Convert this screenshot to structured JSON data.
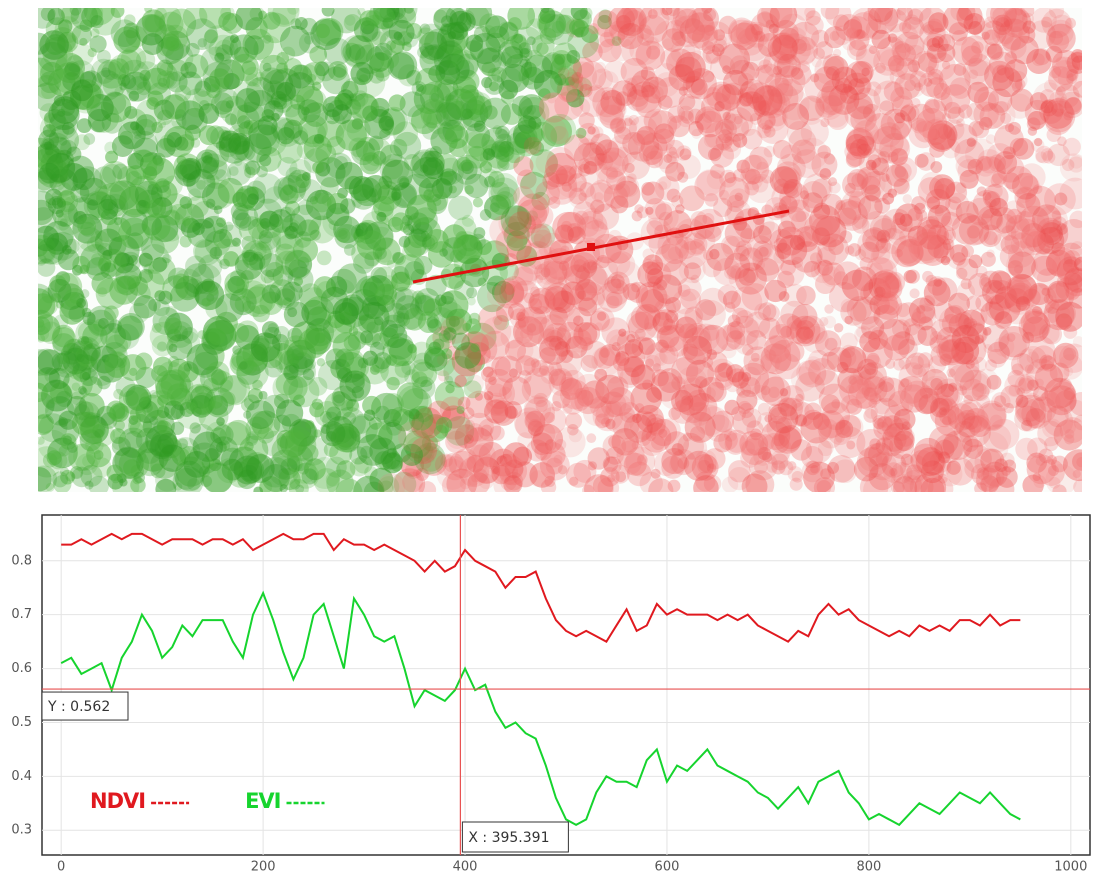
{
  "chart_data": {
    "type": "line",
    "x": [
      0,
      10,
      20,
      30,
      40,
      50,
      60,
      70,
      80,
      90,
      100,
      110,
      120,
      130,
      140,
      150,
      160,
      170,
      180,
      190,
      200,
      210,
      220,
      230,
      240,
      250,
      260,
      270,
      280,
      290,
      300,
      310,
      320,
      330,
      340,
      350,
      360,
      370,
      380,
      390,
      400,
      410,
      420,
      430,
      440,
      450,
      460,
      470,
      480,
      490,
      500,
      510,
      520,
      530,
      540,
      550,
      560,
      570,
      580,
      590,
      600,
      610,
      620,
      630,
      640,
      650,
      660,
      670,
      680,
      690,
      700,
      710,
      720,
      730,
      740,
      750,
      760,
      770,
      780,
      790,
      800,
      810,
      820,
      830,
      840,
      850,
      860,
      870,
      880,
      890,
      900,
      910,
      920,
      930,
      940,
      950
    ],
    "series": [
      {
        "name": "NDVI",
        "color": "#e0191f",
        "values": [
          0.83,
          0.83,
          0.84,
          0.83,
          0.84,
          0.85,
          0.84,
          0.85,
          0.85,
          0.84,
          0.83,
          0.84,
          0.84,
          0.84,
          0.83,
          0.84,
          0.84,
          0.83,
          0.84,
          0.82,
          0.83,
          0.84,
          0.85,
          0.84,
          0.84,
          0.85,
          0.85,
          0.82,
          0.84,
          0.83,
          0.83,
          0.82,
          0.83,
          0.82,
          0.81,
          0.8,
          0.78,
          0.8,
          0.78,
          0.79,
          0.82,
          0.8,
          0.79,
          0.78,
          0.75,
          0.77,
          0.77,
          0.78,
          0.73,
          0.69,
          0.67,
          0.66,
          0.67,
          0.66,
          0.65,
          0.68,
          0.71,
          0.67,
          0.68,
          0.72,
          0.7,
          0.71,
          0.7,
          0.7,
          0.7,
          0.69,
          0.7,
          0.69,
          0.7,
          0.68,
          0.67,
          0.66,
          0.65,
          0.67,
          0.66,
          0.7,
          0.72,
          0.7,
          0.71,
          0.69,
          0.68,
          0.67,
          0.66,
          0.67,
          0.66,
          0.68,
          0.67,
          0.68,
          0.67,
          0.69,
          0.69,
          0.68,
          0.7,
          0.68,
          0.69,
          0.69
        ]
      },
      {
        "name": "EVI",
        "color": "#16d42e",
        "values": [
          0.61,
          0.62,
          0.59,
          0.6,
          0.61,
          0.56,
          0.62,
          0.65,
          0.7,
          0.67,
          0.62,
          0.64,
          0.68,
          0.66,
          0.69,
          0.69,
          0.69,
          0.65,
          0.62,
          0.7,
          0.74,
          0.69,
          0.63,
          0.58,
          0.62,
          0.7,
          0.72,
          0.66,
          0.6,
          0.73,
          0.7,
          0.66,
          0.65,
          0.66,
          0.6,
          0.53,
          0.56,
          0.55,
          0.54,
          0.56,
          0.6,
          0.56,
          0.57,
          0.52,
          0.49,
          0.5,
          0.48,
          0.47,
          0.42,
          0.36,
          0.32,
          0.31,
          0.32,
          0.37,
          0.4,
          0.39,
          0.39,
          0.38,
          0.43,
          0.45,
          0.39,
          0.42,
          0.41,
          0.43,
          0.45,
          0.42,
          0.41,
          0.4,
          0.39,
          0.37,
          0.36,
          0.34,
          0.36,
          0.38,
          0.35,
          0.39,
          0.4,
          0.41,
          0.37,
          0.35,
          0.32,
          0.33,
          0.32,
          0.31,
          0.33,
          0.35,
          0.34,
          0.33,
          0.35,
          0.37,
          0.36,
          0.35,
          0.37,
          0.35,
          0.33,
          0.32
        ]
      }
    ],
    "xlim": [
      -19,
      1019
    ],
    "ylim": [
      0.254,
      0.885
    ],
    "xticks": [
      0,
      200,
      400,
      600,
      800,
      1000
    ],
    "yticks": [
      0.3,
      0.4,
      0.5,
      0.6,
      0.7,
      0.8
    ],
    "grid": true,
    "crosshair": {
      "x": 395.391,
      "y": 0.562,
      "x_label": "X : 395.391",
      "y_label": "Y : 0.562",
      "color": "#e85050"
    }
  }
}
